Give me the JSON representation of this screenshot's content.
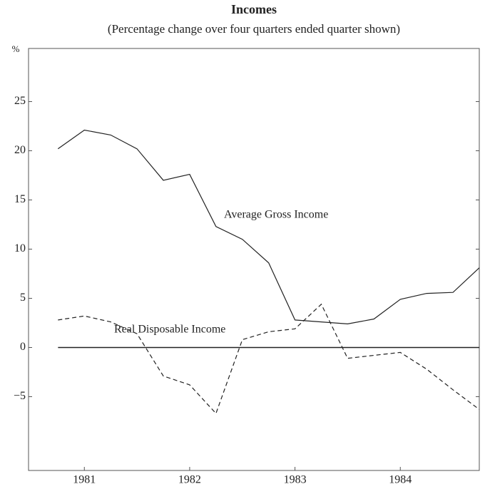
{
  "chart_data": {
    "type": "line",
    "title": "Incomes",
    "subtitle": "(Percentage change over four quarters ended quarter shown)",
    "y_label": "%",
    "x": [
      1980.75,
      1981.0,
      1981.25,
      1981.5,
      1981.75,
      1982.0,
      1982.25,
      1982.5,
      1982.75,
      1983.0,
      1983.25,
      1983.5,
      1983.75,
      1984.0,
      1984.25,
      1984.5,
      1984.75
    ],
    "series": [
      {
        "name": "Average Gross Income",
        "color": "#222222",
        "dash": false,
        "values": [
          20.2,
          22.1,
          21.6,
          20.2,
          17.0,
          17.6,
          12.3,
          11.0,
          8.6,
          2.8,
          2.6,
          2.4,
          2.9,
          4.9,
          5.5,
          5.6,
          8.1
        ]
      },
      {
        "name": "Real Disposable Income",
        "color": "#222222",
        "dash": true,
        "values": [
          2.8,
          3.2,
          2.6,
          1.4,
          -2.9,
          -3.8,
          -6.7,
          0.8,
          1.6,
          1.9,
          4.4,
          -1.1,
          -0.8,
          -0.5,
          -2.2,
          -4.3,
          -6.3
        ]
      }
    ],
    "xlim": [
      1980.47,
      1984.75
    ],
    "xticks": [
      1981,
      1982,
      1983,
      1984
    ],
    "ylim": [
      -12.5,
      30.4
    ],
    "yticks": [
      {
        "value": -5,
        "label": "−5"
      },
      0,
      5,
      10,
      15,
      20,
      25
    ],
    "zero_line": true
  }
}
